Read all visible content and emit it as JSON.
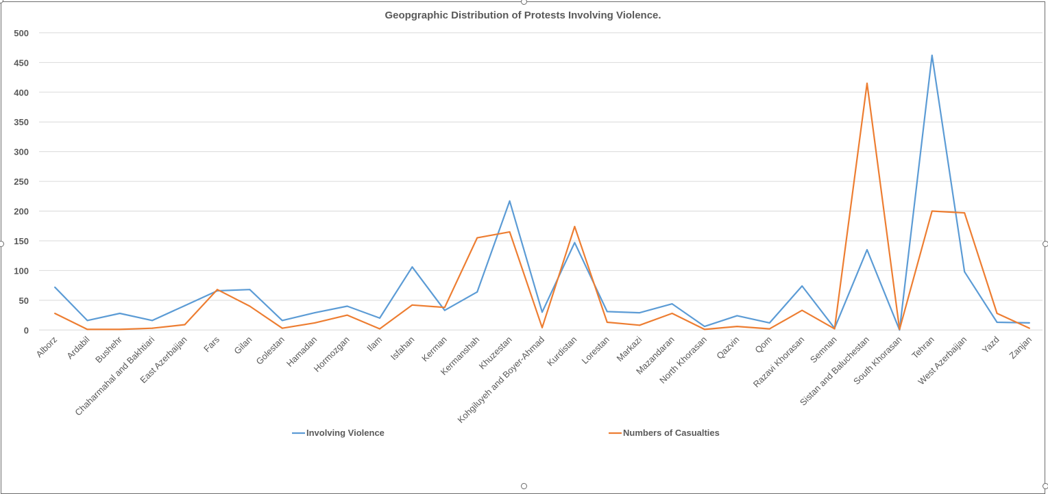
{
  "chart_data": {
    "type": "line",
    "title": "Geopgraphic Distribution of Protests Involving Violence.",
    "xlabel": "",
    "ylabel": "",
    "ylim": [
      0,
      500
    ],
    "yticks": [
      "0",
      "50",
      "100",
      "150",
      "200",
      "250",
      "300",
      "350",
      "400",
      "450",
      "500"
    ],
    "grid": true,
    "legend_position": "bottom",
    "categories": [
      "Alborz",
      "Ardabil",
      "Bushehr",
      "Chaharmahal and Bakhtiari",
      "East Azerbaijan",
      "Fars",
      "Gilan",
      "Golestan",
      "Hamadan",
      "Hormozgan",
      "Ilam",
      "Isfahan",
      "Kerman",
      "Kermanshah",
      "Khuzestan",
      "Kohgiluyeh and Boyer-Ahmad",
      "Kurdistan",
      "Lorestan",
      "Markazi",
      "Mazandaran",
      "North Khorasan",
      "Qazvin",
      "Qom",
      "Razavi Khorasan",
      "Semnan",
      "Sistan and Baluchestan",
      "South Khorasan",
      "Tehran",
      "West Azerbaijan",
      "Yazd",
      "Zanjan"
    ],
    "series": [
      {
        "name": "Involving Violence",
        "color": "#5b9bd5",
        "values": [
          72,
          16,
          28,
          16,
          41,
          66,
          68,
          16,
          29,
          40,
          20,
          106,
          33,
          64,
          217,
          30,
          147,
          31,
          29,
          44,
          6,
          24,
          12,
          74,
          3,
          135,
          0,
          462,
          98,
          13,
          12
        ]
      },
      {
        "name": "Numbers of Casualties",
        "color": "#ed7d31",
        "values": [
          28,
          1,
          1,
          3,
          9,
          68,
          40,
          3,
          12,
          25,
          2,
          42,
          38,
          155,
          165,
          4,
          174,
          13,
          8,
          28,
          1,
          6,
          2,
          33,
          2,
          415,
          1,
          200,
          197,
          28,
          3
        ]
      }
    ]
  }
}
